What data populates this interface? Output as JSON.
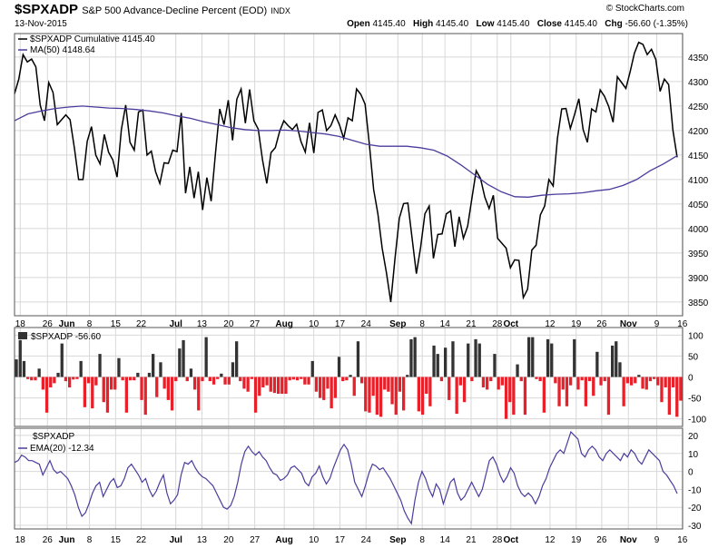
{
  "header": {
    "symbol": "$SPXADP",
    "description": "S&P 500 Advance-Decline Percent (EOD)",
    "exchange": "INDX",
    "date": "13-Nov-2015",
    "open_label": "Open",
    "open": "4145.40",
    "high_label": "High",
    "high": "4145.40",
    "low_label": "Low",
    "low": "4145.40",
    "close_label": "Close",
    "close": "4145.40",
    "chg_label": "Chg",
    "chg": "-56.60 (-1.35%)",
    "credit": "© StockCharts.com"
  },
  "colors": {
    "price_line": "#000000",
    "ma_line": "#4a3c9c",
    "bar_positive": "#333333",
    "bar_negative": "#e8202a",
    "ema_line": "#4a3c9c",
    "grid": "#d8d8d8"
  },
  "chart_data": [
    {
      "type": "line",
      "title": "$SPXADP Cumulative 4145.40",
      "series": [
        {
          "name": "$SPXADP Cumulative 4145.40",
          "values": [
            4275,
            4305,
            4355,
            4340,
            4346,
            4330,
            4252,
            4220,
            4298,
            4278,
            4212,
            4222,
            4232,
            4222,
            4165,
            4100,
            4100,
            4178,
            4208,
            4150,
            4132,
            4192,
            4156,
            4140,
            4105,
            4202,
            4252,
            4176,
            4160,
            4238,
            4242,
            4150,
            4158,
            4116,
            4092,
            4134,
            4133,
            4160,
            4157,
            4236,
            4072,
            4126,
            4062,
            4116,
            4038,
            4104,
            4056,
            4154,
            4244,
            4212,
            4262,
            4180,
            4264,
            4285,
            4215,
            4284,
            4220,
            4203,
            4140,
            4092,
            4155,
            4165,
            4198,
            4220,
            4210,
            4202,
            4213,
            4178,
            4156,
            4216,
            4154,
            4237,
            4242,
            4200,
            4210,
            4232,
            4212,
            4184,
            4226,
            4220,
            4285,
            4274,
            4254,
            4172,
            4080,
            4030,
            3960,
            3910,
            3850,
            3940,
            4021,
            4051,
            4052,
            3980,
            3908,
            3962,
            4030,
            4046,
            3939,
            3988,
            3989,
            4030,
            4036,
            3963,
            4024,
            3980,
            4005,
            4062,
            4118,
            4102,
            4064,
            4041,
            4068,
            3980,
            3970,
            3960,
            3920,
            3936,
            3935,
            3859,
            3876,
            3956,
            3966,
            4028,
            4046,
            4100,
            4087,
            4184,
            4244,
            4245,
            4204,
            4233,
            4265,
            4202,
            4176,
            4244,
            4238,
            4283,
            4270,
            4249,
            4217,
            4310,
            4298,
            4286,
            4320,
            4358,
            4380,
            4376,
            4355,
            4366,
            4345,
            4280,
            4305,
            4294,
            4201,
            4145.4
          ]
        },
        {
          "name": "MA(50) 4148.64",
          "values": [
            4220,
            4234,
            4240,
            4245,
            4248,
            4250,
            4248,
            4246,
            4245,
            4243,
            4240,
            4236,
            4230,
            4225,
            4218,
            4212,
            4206,
            4202,
            4200,
            4200,
            4201,
            4199,
            4196,
            4193,
            4188,
            4180,
            4172,
            4168,
            4168,
            4168,
            4165,
            4160,
            4148,
            4130,
            4110,
            4090,
            4075,
            4065,
            4064,
            4068,
            4070,
            4071,
            4073,
            4077,
            4080,
            4088,
            4100,
            4118,
            4132,
            4148.64
          ]
        }
      ],
      "ma_x_start": 0,
      "yticks": [
        3850,
        3900,
        3950,
        4000,
        4050,
        4100,
        4150,
        4200,
        4250,
        4300,
        4350
      ],
      "ylim": [
        3822,
        4398
      ]
    },
    {
      "type": "bar",
      "title": "$SPXADP -56.60",
      "values": [
        42,
        88,
        38,
        -5,
        -8,
        -8,
        20,
        -30,
        -85,
        -25,
        -15,
        10,
        80,
        -10,
        -25,
        -6,
        -5,
        38,
        -72,
        -15,
        -75,
        -20,
        55,
        -60,
        -85,
        -30,
        -30,
        45,
        -8,
        -85,
        -8,
        -8,
        10,
        -55,
        -90,
        10,
        55,
        -48,
        35,
        -28,
        -55,
        -80,
        -10,
        68,
        88,
        -10,
        20,
        -30,
        -80,
        -10,
        95,
        -10,
        -18,
        -5,
        8,
        -18,
        -18,
        35,
        85,
        -10,
        -28,
        -35,
        -5,
        -85,
        -45,
        -25,
        -20,
        -35,
        -38,
        -40,
        -40,
        -40,
        -8,
        -6,
        -8,
        -5,
        -18,
        -18,
        38,
        -35,
        -50,
        -55,
        -28,
        -75,
        -50,
        48,
        -10,
        -8,
        5,
        -45,
        85,
        -15,
        -82,
        -85,
        -45,
        -90,
        -95,
        -30,
        -35,
        -65,
        -90,
        -35,
        -80,
        5,
        90,
        95,
        -82,
        -90,
        -40,
        -70,
        75,
        55,
        -10,
        70,
        -55,
        85,
        -88,
        -20,
        -60,
        80,
        -10,
        90,
        80,
        -25,
        -30,
        -10,
        55,
        -30,
        -20,
        -100,
        -60,
        -90,
        30,
        -10,
        -90,
        95,
        95,
        -5,
        -10,
        -85,
        90,
        80,
        -15,
        -70,
        -30,
        -70,
        -20,
        90,
        -30,
        -8,
        -70,
        -10,
        -45,
        60,
        -20,
        -10,
        -90,
        75,
        85,
        35,
        -70,
        -15,
        -20,
        -15,
        5,
        -28,
        -30,
        -10,
        -5,
        -20,
        -60,
        -25,
        -90,
        -25,
        -95,
        -56.6
      ],
      "yticks": [
        -100,
        -50,
        0,
        50,
        100
      ],
      "ylim": [
        -118,
        118
      ]
    },
    {
      "type": "line",
      "title": "$SPXADP",
      "series": [
        {
          "name": "EMA(20) -12.34",
          "values": [
            5,
            6,
            9,
            8,
            6,
            6,
            5,
            4,
            -2,
            2,
            6,
            1,
            -1,
            0,
            -2,
            -4,
            -8,
            -13,
            -20,
            -25,
            -23,
            -18,
            -12,
            -8,
            -6,
            -14,
            -10,
            -6,
            -4,
            -9,
            -8,
            -4,
            2,
            4,
            1,
            -2,
            -6,
            -4,
            -10,
            -14,
            -11,
            -6,
            -2,
            -12,
            -18,
            -16,
            -13,
            -2,
            5,
            4,
            6,
            2,
            -1,
            -3,
            -4,
            -6,
            -8,
            -12,
            -16,
            -20,
            -21,
            -19,
            -14,
            -6,
            4,
            11,
            14,
            11,
            9,
            11,
            8,
            6,
            2,
            -1,
            -2,
            -5,
            -4,
            -2,
            2,
            3,
            1,
            -1,
            -6,
            -8,
            -3,
            -1,
            3,
            -3,
            -7,
            -4,
            2,
            7,
            12,
            15,
            12,
            4,
            -6,
            -10,
            -14,
            -8,
            -1,
            4,
            3,
            1,
            2,
            -1,
            -4,
            -8,
            -12,
            -16,
            -22,
            -26,
            -29,
            -16,
            -6,
            0,
            -4,
            -10,
            -14,
            -7,
            -10,
            -18,
            -12,
            -6,
            -4,
            -12,
            -16,
            -14,
            -10,
            -6,
            -10,
            -14,
            -10,
            -2,
            6,
            8,
            4,
            -2,
            -6,
            -3,
            2,
            -1,
            -8,
            -12,
            -14,
            -12,
            -14,
            -18,
            -14,
            -8,
            -4,
            2,
            6,
            10,
            12,
            10,
            16,
            22,
            20,
            18,
            10,
            8,
            12,
            14,
            12,
            8,
            6,
            10,
            12,
            10,
            8,
            6,
            10,
            8,
            12,
            10,
            6,
            4,
            8,
            12,
            10,
            8,
            6,
            0,
            -2,
            -5,
            -8,
            -12.34
          ]
        }
      ],
      "yticks": [
        -30,
        -20,
        -10,
        0,
        10,
        20
      ],
      "ylim": [
        -32,
        24
      ]
    }
  ],
  "xaxis": {
    "labels": [
      {
        "text": "18",
        "pos": 0.01,
        "bold": false
      },
      {
        "text": "26",
        "pos": 0.058,
        "bold": false
      },
      {
        "text": "Jun",
        "pos": 0.092,
        "bold": true
      },
      {
        "text": "8",
        "pos": 0.132,
        "bold": false
      },
      {
        "text": "15",
        "pos": 0.178,
        "bold": false
      },
      {
        "text": "22",
        "pos": 0.223,
        "bold": false
      },
      {
        "text": "Jul",
        "pos": 0.284,
        "bold": true
      },
      {
        "text": "13",
        "pos": 0.33,
        "bold": false
      },
      {
        "text": "20",
        "pos": 0.377,
        "bold": false
      },
      {
        "text": "27",
        "pos": 0.423,
        "bold": false
      },
      {
        "text": "Aug",
        "pos": 0.475,
        "bold": true
      },
      {
        "text": "10",
        "pos": 0.527,
        "bold": false
      },
      {
        "text": "17",
        "pos": 0.573,
        "bold": false
      },
      {
        "text": "24",
        "pos": 0.619,
        "bold": false
      },
      {
        "text": "Sep",
        "pos": 0.675,
        "bold": true
      },
      {
        "text": "8",
        "pos": 0.718,
        "bold": false
      },
      {
        "text": "14",
        "pos": 0.758,
        "bold": false
      },
      {
        "text": "21",
        "pos": 0.804,
        "bold": false
      },
      {
        "text": "28",
        "pos": 0.85,
        "bold": false
      },
      {
        "text": "Oct",
        "pos": 0.874,
        "bold": true
      },
      {
        "text": "12",
        "pos": 0.943,
        "bold": false
      },
      {
        "text": "19",
        "pos": 0.989,
        "bold": false
      },
      {
        "text": "26",
        "pos": 1.034,
        "bold": false
      },
      {
        "text": "Nov",
        "pos": 1.081,
        "bold": true
      },
      {
        "text": "9",
        "pos": 1.131,
        "bold": false
      },
      {
        "text": "16",
        "pos": 1.176,
        "bold": false
      }
    ]
  }
}
